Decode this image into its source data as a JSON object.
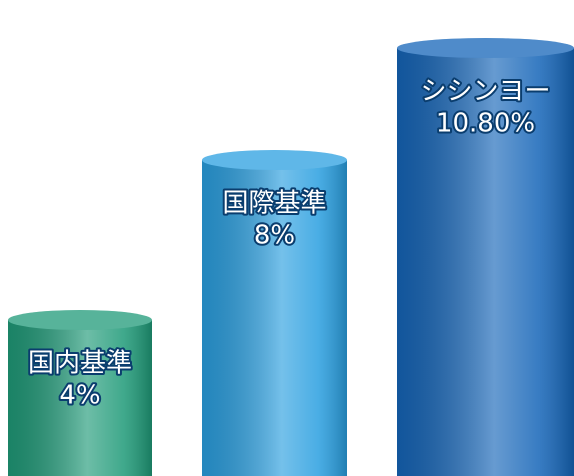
{
  "chart_data": {
    "type": "bar",
    "categories": [
      "国内基準",
      "国際基準",
      "シシンヨー"
    ],
    "values": [
      4,
      8,
      10.8
    ],
    "value_labels": [
      "4%",
      "8%",
      "10.80%"
    ],
    "colors": [
      "#1f9a78",
      "#2a9fe0",
      "#1565b8"
    ]
  }
}
